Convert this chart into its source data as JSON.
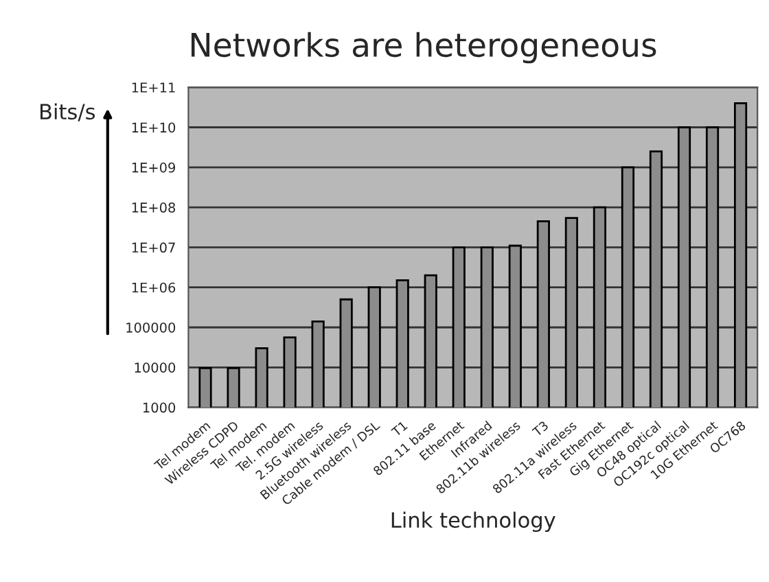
{
  "chart_data": {
    "type": "bar",
    "title": "Networks are heterogeneous",
    "xlabel": "Link technology",
    "ylabel": "Bits/s",
    "categories": [
      "Tel modem",
      "Wireless CDPD",
      "Tel modem",
      "Tel. modem",
      "2.5G wireless",
      "Bluetooth wireless",
      "Cable modem / DSL",
      "T1",
      "802.11 base",
      "Ethernet",
      "Infrared",
      "802.11b wireless",
      "T3",
      "802.11a wireless",
      "Fast Ethernet",
      "Gig Ethernet",
      "OC48 optical",
      "OC192c optical",
      "10G Ethernet",
      "OC768"
    ],
    "values": [
      9600,
      9600,
      30000,
      56000,
      140000,
      500000,
      1000000,
      1500000,
      2000000,
      10000000,
      10000000,
      11000000,
      45000000,
      54000000,
      100000000,
      1000000000,
      2500000000,
      10000000000,
      10000000000,
      40000000000
    ],
    "color": "#8c8c8c",
    "log": true,
    "ylim": [
      1000,
      100000000000
    ],
    "yticks": [
      1000,
      10000,
      100000,
      {
        "value": 1000000,
        "label": "1E+06"
      },
      {
        "value": 10000000,
        "label": "1E+07"
      },
      {
        "value": 100000000,
        "label": "1E+08"
      },
      {
        "value": 1000000000,
        "label": "1E+09"
      },
      {
        "value": 10000000000,
        "label": "1E+10"
      },
      {
        "value": 100000000000,
        "label": "1E+11"
      }
    ],
    "grid": "y"
  }
}
